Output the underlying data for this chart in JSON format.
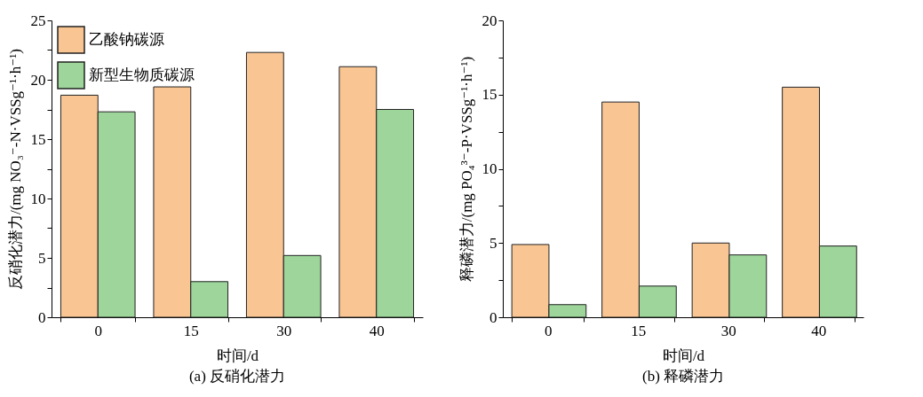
{
  "chart_data": [
    {
      "type": "bar",
      "categories": [
        "0",
        "15",
        "30",
        "40"
      ],
      "xlabel": "时间/d",
      "ylabel": "反硝化潜力/(mg NO₃⁻-N·VSSg⁻¹·h⁻¹)",
      "annotations": [
        "(a) 反硝化潜力"
      ],
      "series": [
        {
          "name": "乙酸钠碳源",
          "color": "#f9c593",
          "values": [
            18.7,
            19.4,
            22.3,
            21.1
          ]
        },
        {
          "name": "新型生物质碳源",
          "color": "#9dd59a",
          "values": [
            17.3,
            3.0,
            5.2,
            17.5
          ]
        }
      ],
      "ylim": [
        0,
        25
      ],
      "yticks": [
        0,
        {
          "value": 2.5,
          "label": null
        },
        5,
        {
          "value": 7.5,
          "label": null
        },
        10,
        {
          "value": 12.5,
          "label": null
        },
        15,
        {
          "value": 17.5,
          "label": null
        },
        20,
        {
          "value": 22.5,
          "label": null
        },
        25
      ],
      "legend": "top left",
      "grid": false
    },
    {
      "type": "bar",
      "categories": [
        "0",
        "15",
        "30",
        "40"
      ],
      "xlabel": "时间/d",
      "ylabel": "释磷潜力/(mg PO₄³⁻-P·VSSg⁻¹·h⁻¹)",
      "annotations": [
        "(b) 释磷潜力"
      ],
      "series": [
        {
          "name": "乙酸钠碳源",
          "color": "#f9c593",
          "values": [
            4.9,
            14.5,
            5.0,
            15.5
          ]
        },
        {
          "name": "新型生物质碳源",
          "color": "#9dd59a",
          "values": [
            0.85,
            2.1,
            4.2,
            4.8
          ]
        }
      ],
      "ylim": [
        0,
        20
      ],
      "yticks": [
        0,
        {
          "value": 2.5,
          "label": null
        },
        5,
        {
          "value": 7.5,
          "label": null
        },
        10,
        {
          "value": 12.5,
          "label": null
        },
        15,
        {
          "value": 17.5,
          "label": null
        },
        20
      ],
      "legend": "top left",
      "grid": false
    }
  ]
}
